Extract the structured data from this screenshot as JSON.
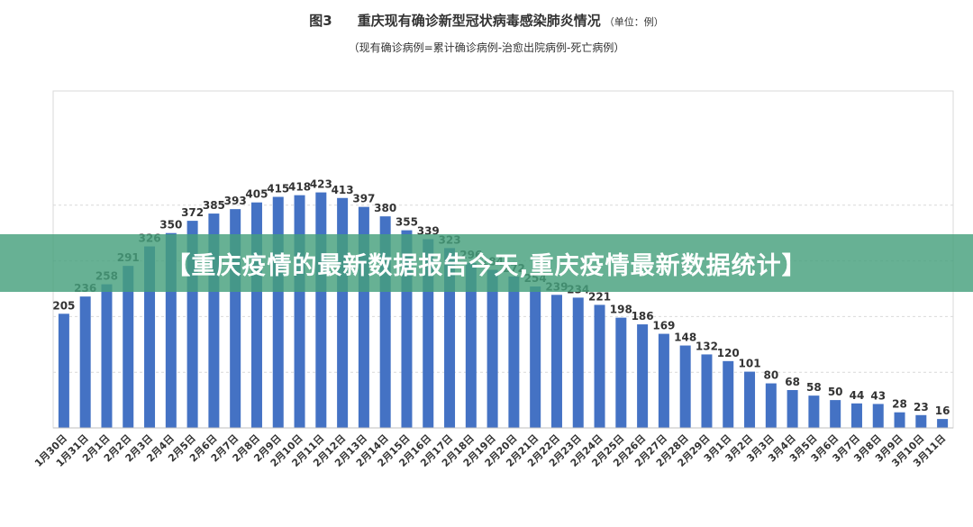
{
  "header": {
    "figure_label": "图3",
    "title": "重庆现有确诊新型冠状病毒感染肺炎情况",
    "unit": "（单位：例）",
    "subtitle": "（现有确诊病例=累计确诊病例-治愈出院病例-死亡病例）"
  },
  "banner": {
    "text": "【重庆疫情的最新数据报告今天,重庆疫情最新数据统计】"
  },
  "colors": {
    "bar": "#4472C4",
    "banner": "#46A07D"
  },
  "chart_data": {
    "type": "bar",
    "categories": [
      "1月30日",
      "1月31日",
      "2月1日",
      "2月2日",
      "2月3日",
      "2月4日",
      "2月5日",
      "2月6日",
      "2月7日",
      "2月8日",
      "2月9日",
      "2月10日",
      "2月11日",
      "2月12日",
      "2月13日",
      "2月14日",
      "2月15日",
      "2月16日",
      "2月17日",
      "2月18日",
      "2月19日",
      "2月20日",
      "2月21日",
      "2月22日",
      "2月23日",
      "2月24日",
      "2月25日",
      "2月26日",
      "2月27日",
      "2月28日",
      "2月29日",
      "3月1日",
      "3月2日",
      "3月3日",
      "3月4日",
      "3月5日",
      "3月6日",
      "3月7日",
      "3月8日",
      "3月9日",
      "3月10日",
      "3月11日"
    ],
    "values": [
      205,
      236,
      258,
      291,
      326,
      350,
      372,
      385,
      393,
      405,
      415,
      418,
      423,
      413,
      397,
      380,
      355,
      339,
      323,
      296,
      284,
      272,
      254,
      239,
      234,
      221,
      198,
      186,
      169,
      148,
      132,
      120,
      101,
      80,
      68,
      58,
      50,
      44,
      43,
      28,
      23,
      16
    ],
    "ylim": [
      0,
      500
    ],
    "grid": true
  }
}
